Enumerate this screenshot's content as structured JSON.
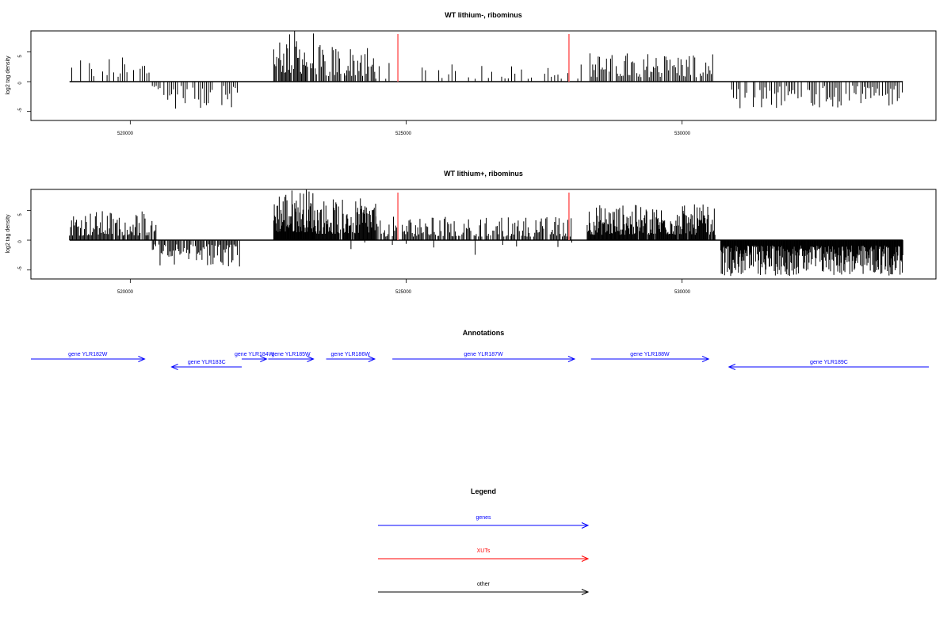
{
  "chart_data": [
    {
      "type": "bar",
      "title": "WT lithium-, ribominus",
      "ylabel": "log2 tag density",
      "xlim": [
        518200,
        534600
      ],
      "ylim": [
        -6.5,
        8.5
      ],
      "x_ticks": [
        520000,
        525000,
        530000
      ],
      "x_tick_labels": [
        "520000",
        "525000",
        "530000"
      ],
      "y_ticks": [
        -5,
        0,
        5
      ],
      "y_tick_labels": [
        "-5",
        "0",
        "5"
      ],
      "xut_markers": [
        524850,
        527950
      ],
      "baseline_range": [
        518900,
        534000
      ],
      "tracks": [
        {
          "strand": "+",
          "start": 518900,
          "end": 520400,
          "max": 4.2,
          "step": 40,
          "density": 0.55
        },
        {
          "strand": "-",
          "start": 520400,
          "end": 521950,
          "max": 4.8,
          "step": 35,
          "density": 0.7
        },
        {
          "strand": "+",
          "start": 522600,
          "end": 523330,
          "max": 8.8,
          "step": 18,
          "density": 0.9
        },
        {
          "strand": "+",
          "start": 523330,
          "end": 524450,
          "max": 6.2,
          "step": 22,
          "density": 0.8
        },
        {
          "strand": "+",
          "start": 524450,
          "end": 528280,
          "max": 3.2,
          "step": 60,
          "density": 0.45
        },
        {
          "strand": "+",
          "start": 528330,
          "end": 530570,
          "max": 5.0,
          "step": 25,
          "density": 0.85
        },
        {
          "strand": "-",
          "start": 530900,
          "end": 534000,
          "max": 4.5,
          "step": 30,
          "density": 0.75
        }
      ]
    },
    {
      "type": "bar",
      "title": "WT lithium+, ribominus",
      "ylabel": "log2 tag density",
      "xlim": [
        518200,
        534600
      ],
      "ylim": [
        -6.5,
        8.5
      ],
      "x_ticks": [
        520000,
        525000,
        530000
      ],
      "x_tick_labels": [
        "520000",
        "525000",
        "530000"
      ],
      "y_ticks": [
        -5,
        0,
        5
      ],
      "y_tick_labels": [
        "-5",
        "0",
        "5"
      ],
      "xut_markers": [
        524850,
        527950
      ],
      "baseline_range": [
        518900,
        534000
      ],
      "tracks": [
        {
          "strand": "+",
          "start": 518900,
          "end": 520500,
          "max": 5.0,
          "step": 18,
          "density": 0.9
        },
        {
          "strand": "-",
          "start": 520400,
          "end": 522000,
          "max": 4.6,
          "step": 20,
          "density": 0.85
        },
        {
          "strand": "+",
          "start": 522600,
          "end": 523330,
          "max": 8.8,
          "step": 10,
          "density": 1.0
        },
        {
          "strand": "+",
          "start": 523330,
          "end": 524450,
          "max": 7.0,
          "step": 12,
          "density": 0.95
        },
        {
          "strand": "+",
          "start": 524450,
          "end": 528000,
          "max": 4.0,
          "step": 20,
          "density": 0.8
        },
        {
          "strand": "-",
          "start": 524000,
          "end": 528200,
          "max": 2.5,
          "step": 250,
          "density": 0.6
        },
        {
          "strand": "+",
          "start": 528280,
          "end": 530600,
          "max": 6.0,
          "step": 12,
          "density": 0.95
        },
        {
          "strand": "-",
          "start": 530700,
          "end": 534000,
          "max": 6.0,
          "step": 10,
          "density": 1.0
        }
      ]
    }
  ],
  "annotations": {
    "title": "Annotations",
    "genes": [
      {
        "label": "gene YLR182W",
        "start": 518200,
        "end": 520260,
        "strand": "+",
        "row": 0
      },
      {
        "label": "gene YLR183C",
        "start": 520750,
        "end": 522020,
        "strand": "-",
        "row": 1
      },
      {
        "label": "gene YLR184W",
        "start": 522020,
        "end": 522470,
        "strand": "+",
        "row": 0
      },
      {
        "label": "gene YLR185W",
        "start": 522500,
        "end": 523320,
        "strand": "+",
        "row": 0
      },
      {
        "label": "gene YLR186W",
        "start": 523550,
        "end": 524430,
        "strand": "+",
        "row": 0
      },
      {
        "label": "gene YLR187W",
        "start": 524750,
        "end": 528050,
        "strand": "+",
        "row": 0
      },
      {
        "label": "gene YLR188W",
        "start": 528350,
        "end": 530480,
        "strand": "+",
        "row": 0
      },
      {
        "label": "gene YLR189C",
        "start": 530850,
        "end": 534550,
        "strand": "-",
        "row": 1
      }
    ]
  },
  "legend": {
    "title": "Legend",
    "items": [
      {
        "label": "genes",
        "color": "#0000ff"
      },
      {
        "label": "XUTs",
        "color": "#ff0000"
      },
      {
        "label": "other",
        "color": "#000000"
      }
    ]
  },
  "colors": {
    "signal": "#000000",
    "xut": "#ff6666",
    "gene": "#0000ff",
    "frame": "#000000"
  }
}
